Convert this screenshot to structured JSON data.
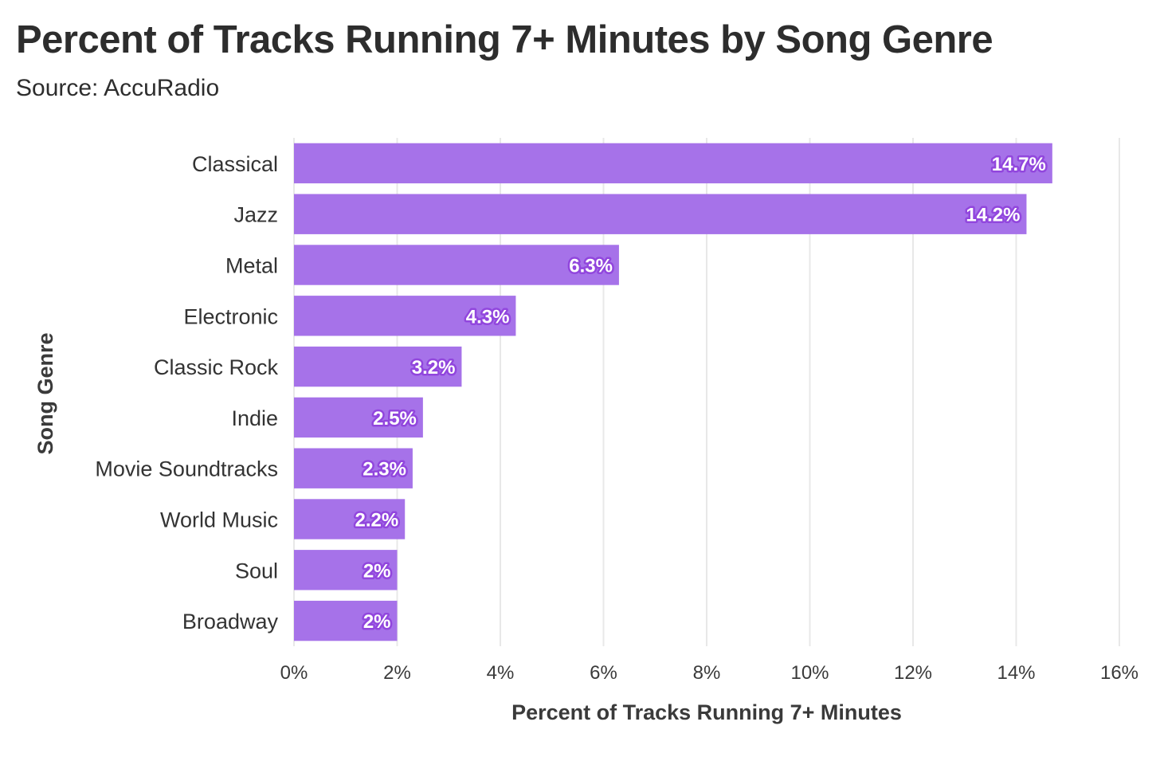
{
  "chart_data": {
    "type": "bar",
    "orientation": "horizontal",
    "title": "Percent of Tracks Running 7+ Minutes by Song Genre",
    "subtitle": "Source: AccuRadio",
    "xlabel": "Percent of Tracks Running 7+ Minutes",
    "ylabel": "Song Genre",
    "xlim": [
      0,
      16
    ],
    "xticks": [
      0,
      2,
      4,
      6,
      8,
      10,
      12,
      14,
      16
    ],
    "xtick_labels": [
      "0%",
      "2%",
      "4%",
      "6%",
      "8%",
      "10%",
      "12%",
      "14%",
      "16%"
    ],
    "categories": [
      "Classical",
      "Jazz",
      "Metal",
      "Electronic",
      "Classic Rock",
      "Indie",
      "Movie Soundtracks",
      "World Music",
      "Soul",
      "Broadway"
    ],
    "values": [
      14.7,
      14.2,
      6.3,
      4.3,
      3.25,
      2.5,
      2.3,
      2.15,
      2.0,
      2.0
    ],
    "data_labels": [
      "14.7%",
      "14.2%",
      "6.3%",
      "4.3%",
      "3.2%",
      "2.5%",
      "2.3%",
      "2.2%",
      "2%",
      "2%"
    ],
    "grid": "vertical",
    "bar_color": "#a672e9",
    "label_outline_color": "#9146dd"
  }
}
